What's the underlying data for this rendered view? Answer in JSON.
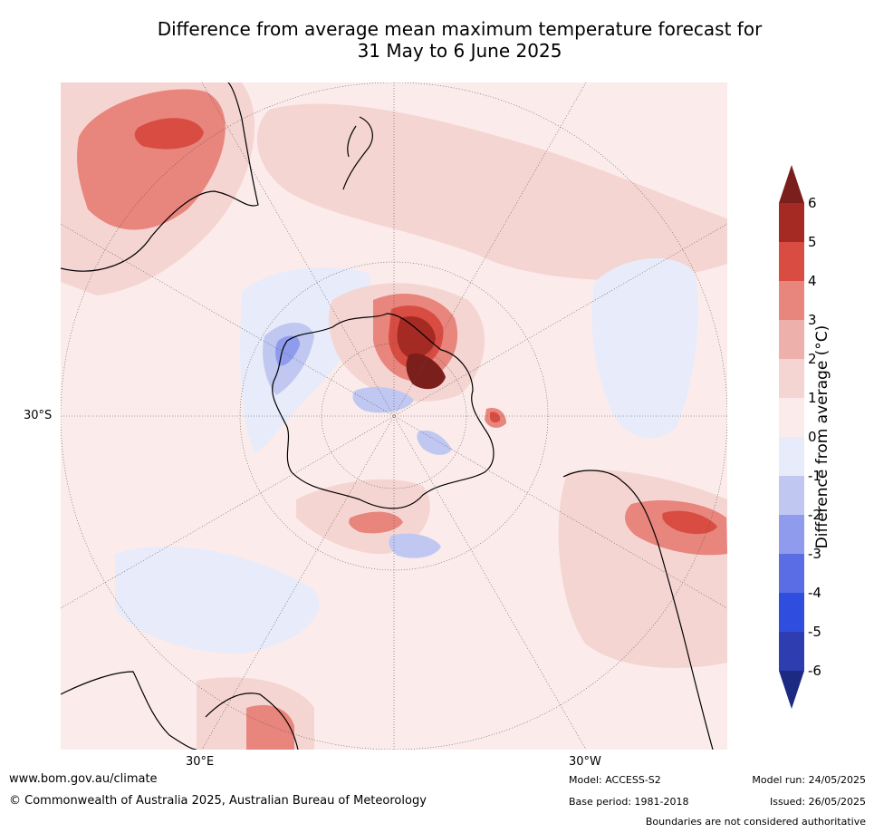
{
  "title": {
    "line1": "Difference from average mean maximum temperature forecast for",
    "line2": "31 May to 6 June 2025"
  },
  "axis_labels": {
    "lat_30s": "30°S",
    "lon_30e": "30°E",
    "lon_30w": "30°W"
  },
  "colorbar": {
    "title": "Difference from average (°C)",
    "ticks": [
      "6",
      "5",
      "4",
      "3",
      "2",
      "1",
      "0",
      "-1",
      "-2",
      "-3",
      "-4",
      "-5",
      "-6"
    ],
    "colors_warm_top_to_bottom": [
      "#a52a24",
      "#d94c41",
      "#e8857c",
      "#eeb0aa",
      "#f5d5d2",
      "#fbeceb"
    ],
    "colors_cool_top_to_bottom": [
      "#e8ebfa",
      "#c0c8f2",
      "#8f9ced",
      "#5a6de4",
      "#2f4ee0",
      "#2e3eb0"
    ],
    "over_color": "#7b1f1c",
    "under_color": "#1d2a82"
  },
  "footer": {
    "website": "www.bom.gov.au/climate",
    "copyright": "© Commonwealth of Australia 2025, Australian Bureau of Meteorology",
    "model": "Model: ACCESS-S2",
    "base_period": "Base period: 1981-2018",
    "model_run": "Model run: 24/05/2025",
    "issued": "Issued: 26/05/2025",
    "disclaimer": "Boundaries are not considered authoritative"
  }
}
